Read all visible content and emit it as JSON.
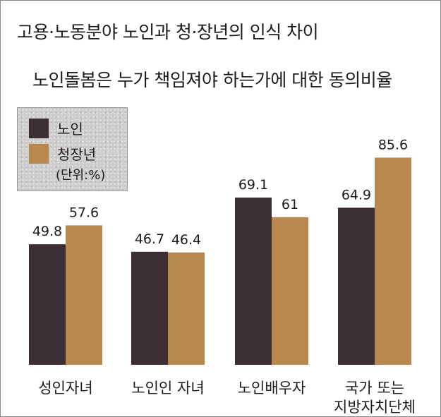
{
  "title": "고용·노동분야 노인과 청·장년의 인식 차이",
  "subtitle": "노인돌봄은 누가 책임져야 하는가에 대한 동의비율",
  "legend": {
    "items": [
      {
        "label": "노인",
        "color": "#3b2f35"
      },
      {
        "label": "청장년",
        "color": "#b8894f"
      }
    ],
    "unit": "(단위:%)"
  },
  "chart_data": {
    "type": "bar",
    "title": "노인돌봄은 누가 책임져야 하는가에 대한 동의비율",
    "categories": [
      [
        "성인자녀"
      ],
      [
        "노인인 자녀"
      ],
      [
        "노인배우자"
      ],
      [
        "국가 또는",
        "지방자치단체"
      ]
    ],
    "series": [
      {
        "name": "노인",
        "values": [
          49.8,
          46.7,
          69.1,
          64.9
        ],
        "color": "#3b2f35"
      },
      {
        "name": "청장년",
        "values": [
          57.6,
          46.4,
          61,
          85.6
        ],
        "color": "#b8894f"
      }
    ],
    "unit": "(단위:%)",
    "ylim": [
      0,
      100
    ],
    "grid": false,
    "legend_position": "top-left"
  }
}
